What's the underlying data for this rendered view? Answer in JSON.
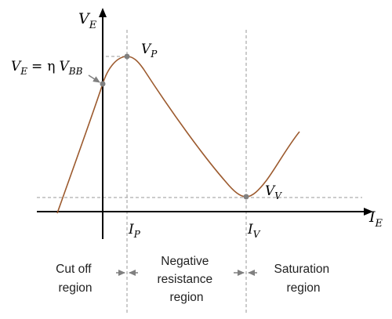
{
  "axes": {
    "y_label": {
      "main": "V",
      "sub": "E"
    },
    "x_label": {
      "main": "I",
      "sub": "E"
    }
  },
  "points": {
    "peak_label": {
      "main": "V",
      "sub": "P"
    },
    "valley_label": {
      "main": "V",
      "sub": "V"
    },
    "intercept_label": {
      "lhs_main": "V",
      "lhs_sub": "E",
      "equals": "=",
      "eta": "η",
      "rhs_main": "V",
      "rhs_sub": "BB"
    }
  },
  "x_ticks": {
    "peak_current": {
      "main": "I",
      "sub": "P"
    },
    "valley_current": {
      "main": "I",
      "sub": "V"
    }
  },
  "regions": {
    "cutoff": [
      "Cut off",
      "region"
    ],
    "negative": [
      "Negative",
      "resistance",
      "region"
    ],
    "saturation": [
      "Saturation",
      "region"
    ]
  },
  "colors": {
    "curve": "#9c5a2e",
    "axis": "#000000",
    "guide": "#9a9a9a",
    "point": "#808080",
    "arrow": "#808080"
  }
}
